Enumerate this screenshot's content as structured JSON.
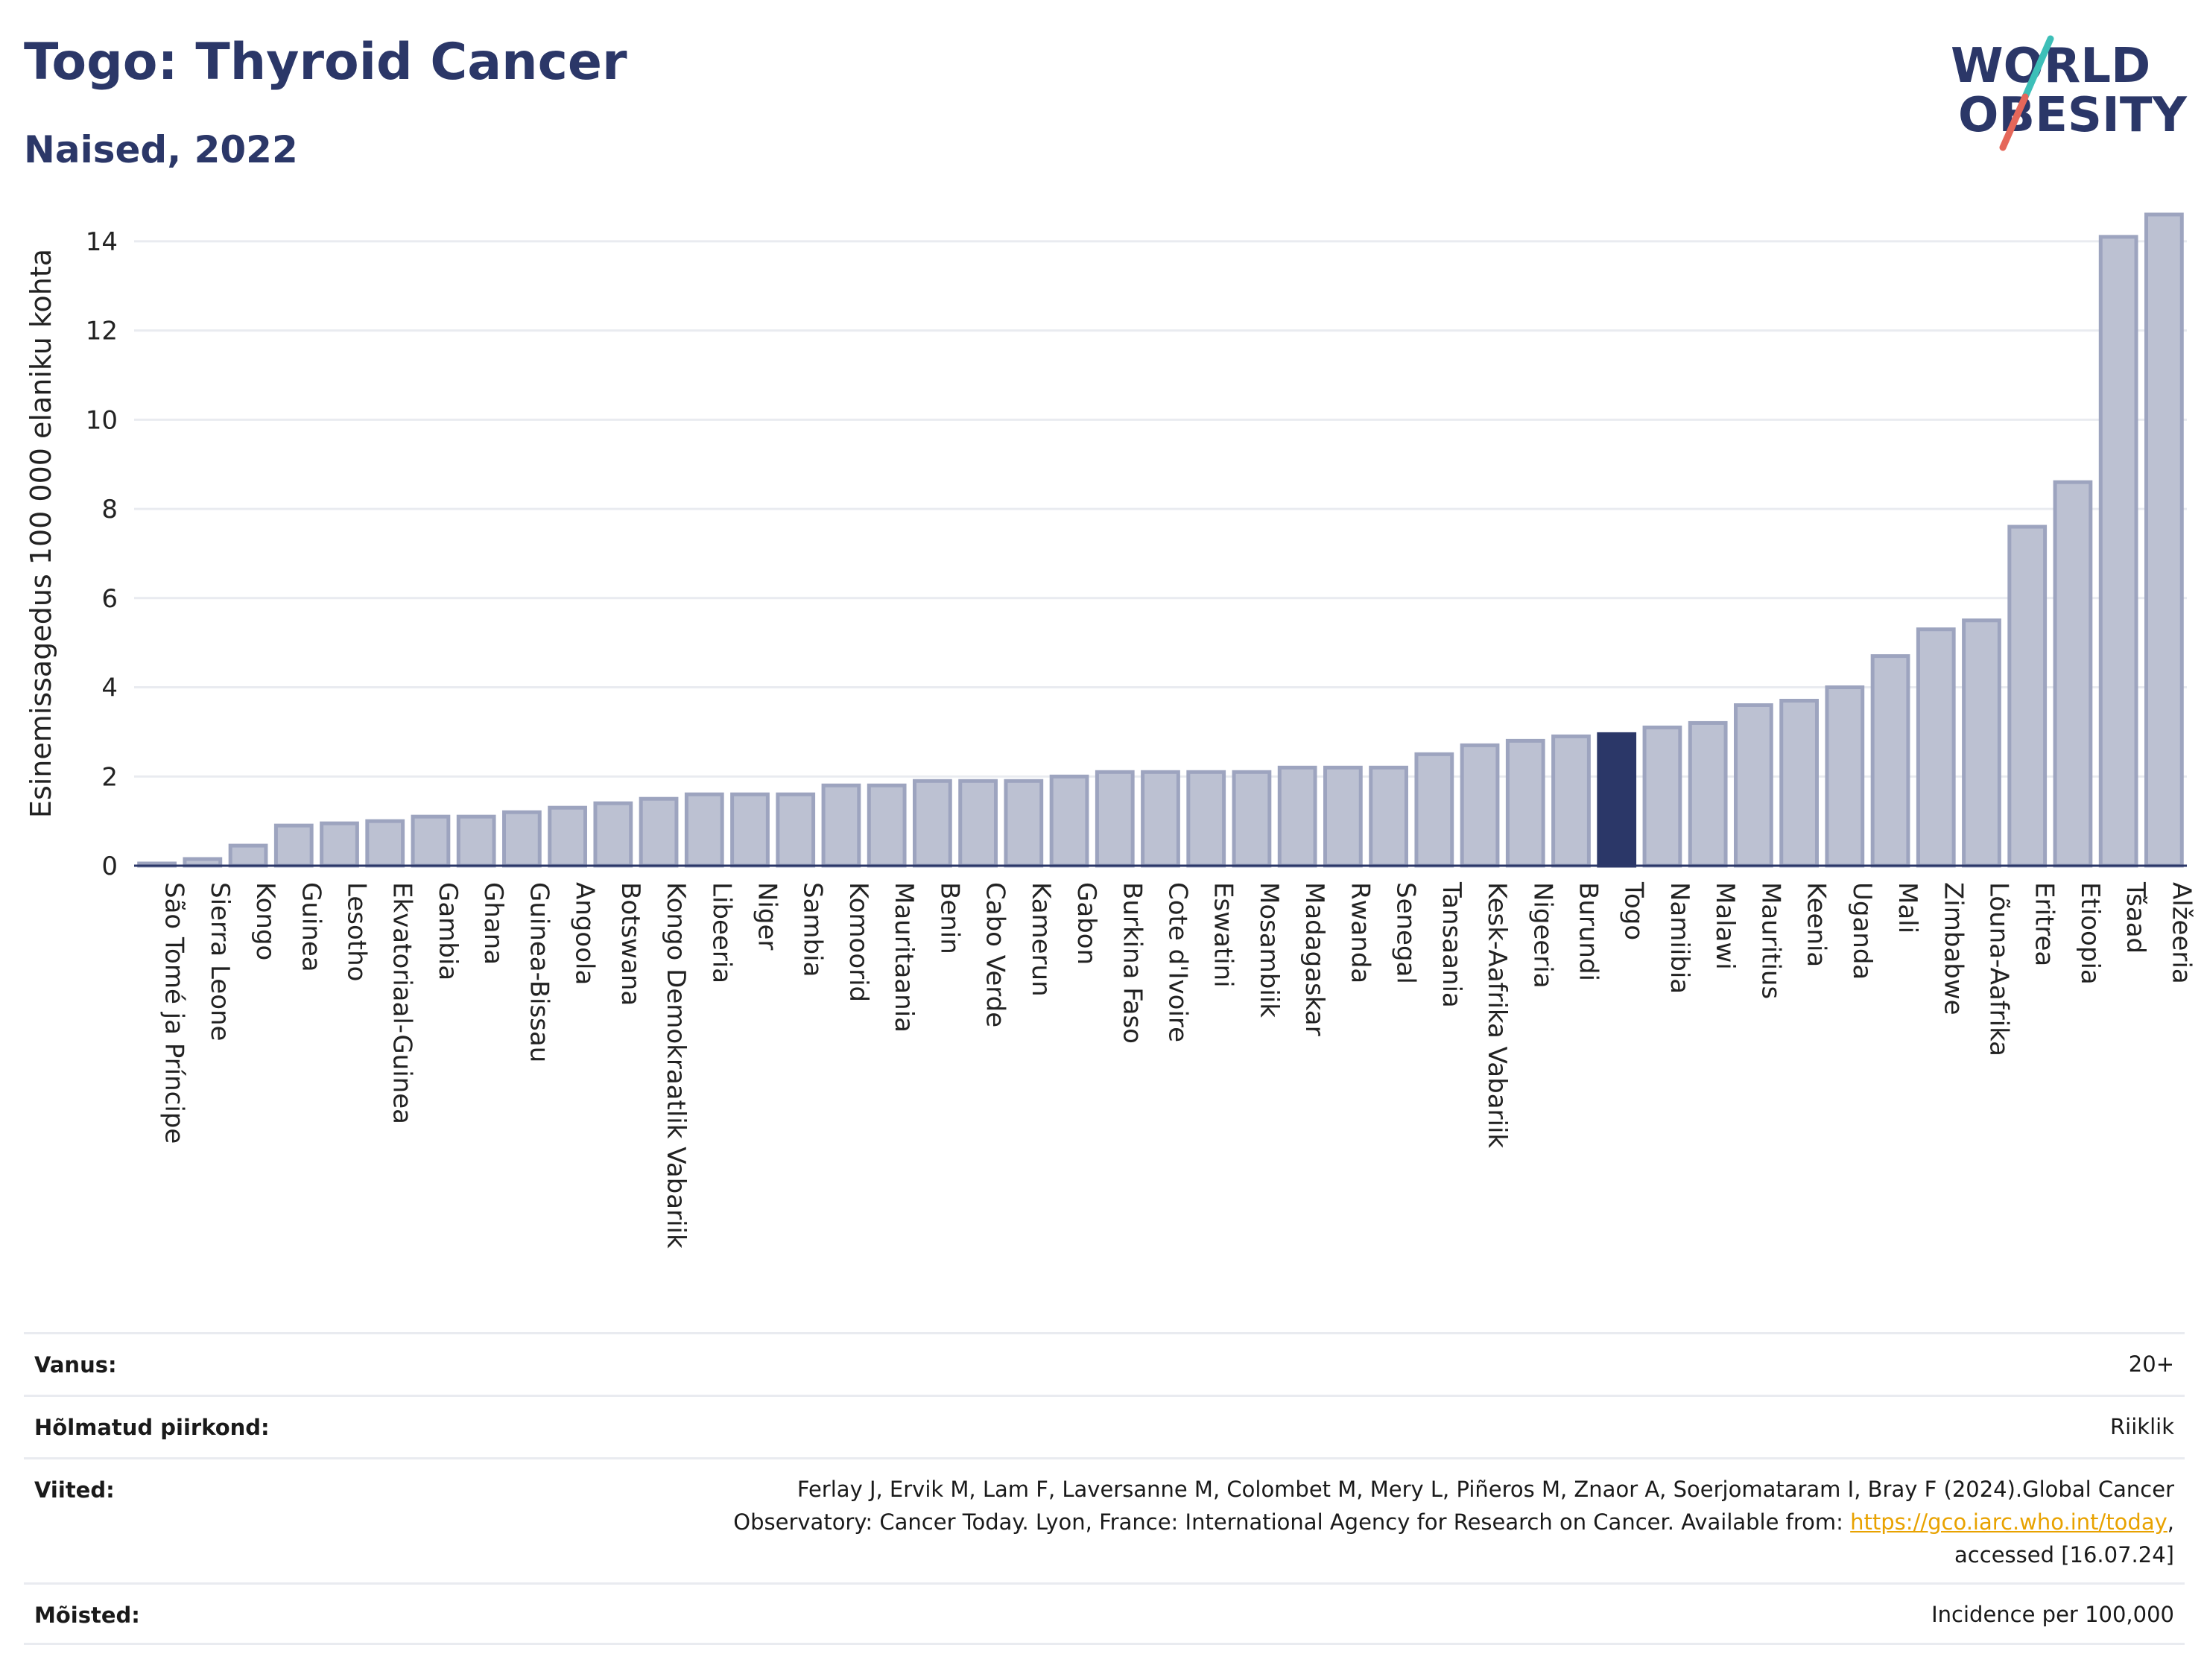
{
  "header": {
    "title": "Togo: Thyroid Cancer",
    "subtitle": "Naised, 2022"
  },
  "logo": {
    "line1": "WORLD",
    "line2": "OBESITY",
    "colors": {
      "text": "#2b3768",
      "slash_teal": "#3dbfb8",
      "slash_red": "#e5675a"
    }
  },
  "chart_data": {
    "type": "bar",
    "ylabel": "Esinemissagedus 100 000 elaniku kohta",
    "xlabel": "",
    "ylim": [
      0,
      14.9
    ],
    "yticks": [
      0,
      2,
      4,
      6,
      8,
      10,
      12,
      14
    ],
    "grid": true,
    "highlight": "Togo",
    "colors": {
      "bar": "#bcc1d2",
      "bar_edge": "#9da4bf",
      "highlight": "#2b3768",
      "grid": "#e9ebf0"
    },
    "categories": [
      "São Tomé ja Príncipe",
      "Sierra Leone",
      "Kongo",
      "Guinea",
      "Lesotho",
      "Ekvatoriaal-Guinea",
      "Gambia",
      "Ghana",
      "Guinea-Bissau",
      "Angoola",
      "Botswana",
      "Kongo Demokraatlik Vabariik",
      "Libeeria",
      "Niger",
      "Sambia",
      "Komoorid",
      "Mauritaania",
      "Benin",
      "Cabo Verde",
      "Kamerun",
      "Gabon",
      "Burkina Faso",
      "Cote d'Ivoire",
      "Eswatini",
      "Mosambiik",
      "Madagaskar",
      "Rwanda",
      "Senegal",
      "Tansaania",
      "Kesk-Aafrika Vabariik",
      "Nigeeria",
      "Burundi",
      "Togo",
      "Namiibia",
      "Malawi",
      "Mauritius",
      "Keenia",
      "Uganda",
      "Mali",
      "Zimbabwe",
      "Lõuna-Aafrika",
      "Eritrea",
      "Etioopia",
      "Tšaad",
      "Alžeeria"
    ],
    "values": [
      0.05,
      0.15,
      0.45,
      0.9,
      0.95,
      1.0,
      1.1,
      1.1,
      1.2,
      1.3,
      1.4,
      1.5,
      1.6,
      1.6,
      1.6,
      1.8,
      1.8,
      1.9,
      1.9,
      1.9,
      2.0,
      2.1,
      2.1,
      2.1,
      2.1,
      2.2,
      2.2,
      2.2,
      2.5,
      2.7,
      2.8,
      2.9,
      2.95,
      3.1,
      3.2,
      3.6,
      3.7,
      4.0,
      4.7,
      5.3,
      5.5,
      7.6,
      8.6,
      14.1,
      14.6
    ]
  },
  "info": {
    "age_label": "Vanus:",
    "age_value": "20+",
    "region_label": "Hõlmatud piirkond:",
    "region_value": "Riiklik",
    "refs_label": "Viited:",
    "refs_text_1": "Ferlay J, Ervik M, Lam F, Laversanne M, Colombet M, Mery L, Piñeros M, Znaor A, Soerjomataram I, Bray F (2024).Global Cancer Observatory: Cancer Today. Lyon, France: International Agency for Research on Cancer. Available from: ",
    "refs_link": "https://gco.iarc.who.int/today",
    "refs_text_2": ", accessed [16.07.24]",
    "defs_label": "Mõisted:",
    "defs_value": "Incidence per 100,000"
  }
}
